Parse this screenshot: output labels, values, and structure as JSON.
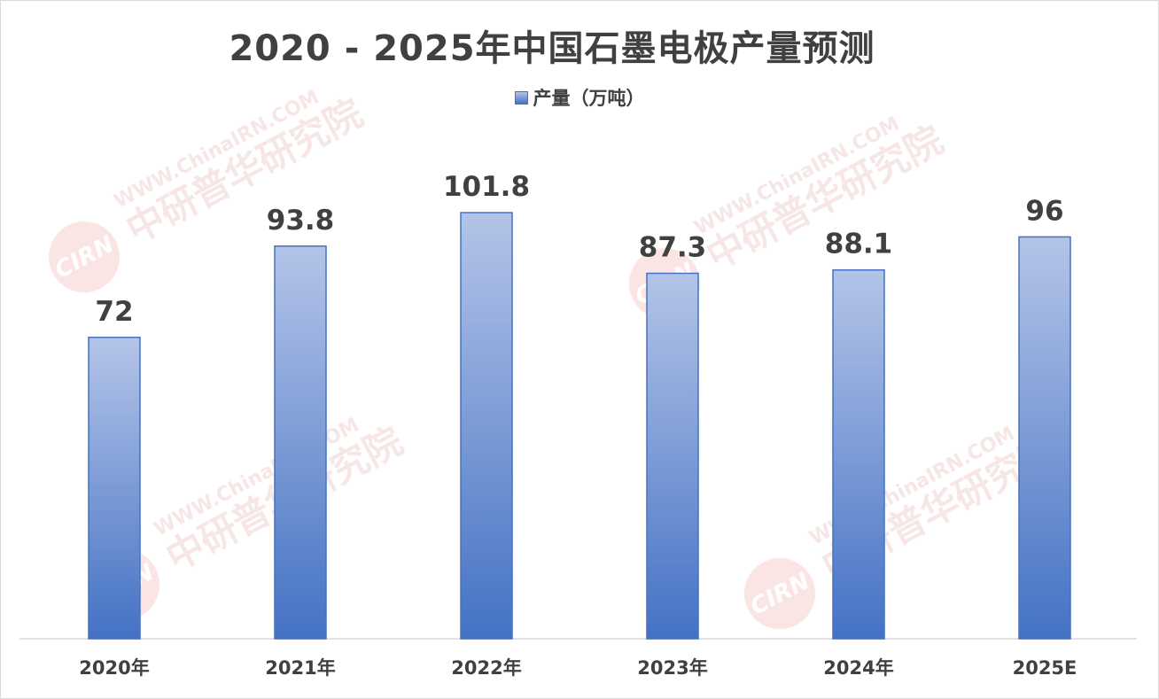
{
  "chart_data": {
    "type": "bar",
    "title": "2020 - 2025年中国石墨电极产量预测",
    "categories": [
      "2020年",
      "2021年",
      "2022年",
      "2023年",
      "2024年",
      "2025E"
    ],
    "series": [
      {
        "name": "产量（万吨）",
        "values": [
          72,
          93.8,
          101.8,
          87.3,
          88.1,
          96
        ]
      }
    ],
    "data_labels": [
      "72",
      "93.8",
      "101.8",
      "87.3",
      "88.1",
      "96"
    ],
    "ylim": [
      0,
      120
    ],
    "grid": false,
    "legend_position": "top-center",
    "colors": {
      "bar_top": "#b4c4e8",
      "bar_bottom": "#4472c4",
      "bar_edge": "#4472c4",
      "text": "#404040",
      "axis": "#d9d9d9"
    }
  },
  "watermark": {
    "logo": "CIRN",
    "line1": "中研普华研究院",
    "line2": "WWW.ChinaIRN.COM"
  }
}
